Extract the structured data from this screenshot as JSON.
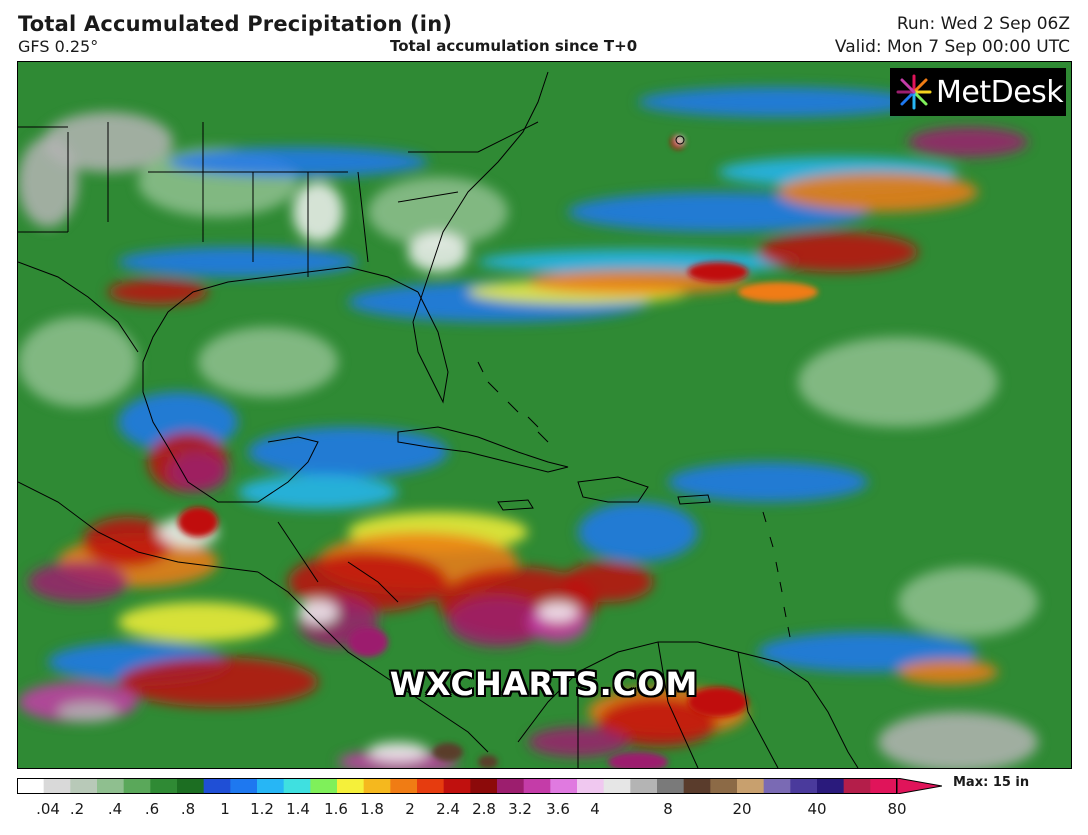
{
  "header": {
    "title": "Total Accumulated Precipitation (in)",
    "model": "GFS 0.25°",
    "description": "Total accumulation since T+0",
    "run": "Run: Wed 2 Sep 06Z",
    "valid": "Valid: Mon 7 Sep 00:00 UTC"
  },
  "logo": {
    "text": "MetDesk"
  },
  "watermark": "WXCHARTS.COM",
  "legend": {
    "max_label": "Max: 15 in",
    "ticks": [
      ".04",
      ".2",
      ".4",
      ".6",
      ".8",
      "1",
      "1.2",
      "1.4",
      "1.6",
      "1.8",
      "2",
      "2.4",
      "2.8",
      "3.2",
      "3.6",
      "4",
      "8",
      "20",
      "40",
      "80"
    ],
    "colors": [
      "#ffffff",
      "#d9d9d9",
      "#b8c9b8",
      "#8fbf8f",
      "#5aa85a",
      "#2f8a34",
      "#1c6e22",
      "#1f4fd6",
      "#1e78f0",
      "#27b6f5",
      "#3fe0e0",
      "#7ff05a",
      "#f5f03a",
      "#f5b81e",
      "#f07c14",
      "#e63c0f",
      "#c0100e",
      "#8c0a0a",
      "#9c1e6e",
      "#c43ca8",
      "#e07ae0",
      "#f0c8f0",
      "#e6e6e6",
      "#b4b4b4",
      "#7a7a7a",
      "#5a3c2c",
      "#8c6a46",
      "#c8a06e",
      "#7a6ab4",
      "#4a3a9c",
      "#2a1a7c",
      "#b41e4a",
      "#e0145a"
    ],
    "arrow_color": "#e0145a"
  },
  "map_colors": {
    "ocean_base": "#2f8a34",
    "light": "#8fbf8f",
    "grey": "#b4b4b4",
    "blue": "#1e78f0",
    "cyan": "#27b6f5",
    "yellow": "#f5f03a",
    "orange": "#f07c14",
    "red": "#c0100e",
    "purple": "#9c1e6e",
    "magenta": "#c43ca8",
    "white": "#f2f2f2",
    "brown": "#5a3c2c",
    "border": "#000000"
  }
}
